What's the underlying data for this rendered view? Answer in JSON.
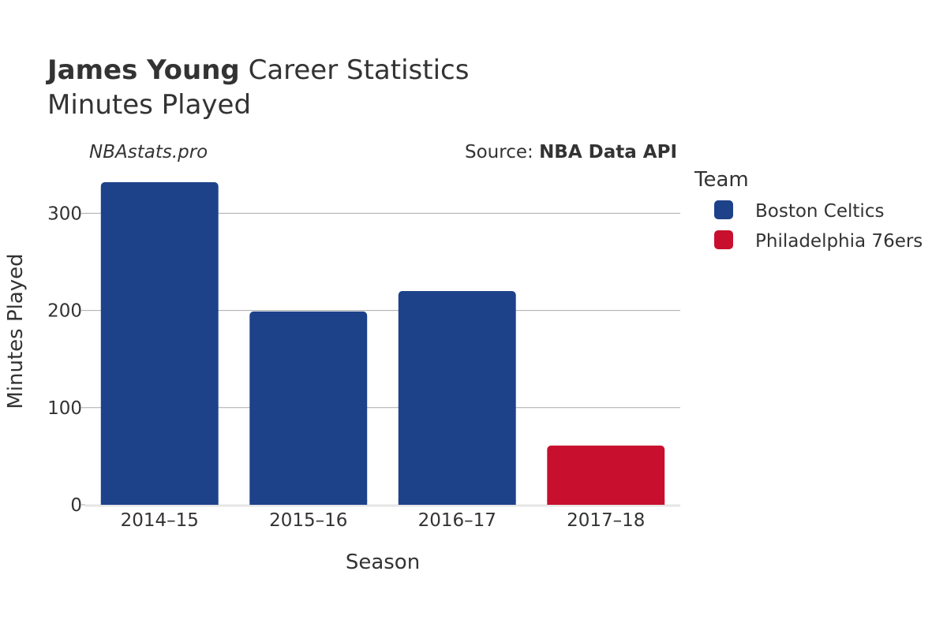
{
  "header": {
    "player": "James Young",
    "title_rest": " Career Statistics",
    "subtitle": "Minutes Played"
  },
  "credits": {
    "site": "NBAstats.pro",
    "source_prefix": "Source: ",
    "source_name": "NBA Data API"
  },
  "legend": {
    "title": "Team",
    "placement": "right"
  },
  "colors": {
    "Boston Celtics": "#1d428a",
    "Philadelphia 76ers": "#c8102e",
    "grid": "#aaaaaa",
    "baseline": "#e6e6e6"
  },
  "chart_data": {
    "type": "bar",
    "categories": [
      "2014–15",
      "2015–16",
      "2016–17",
      "2017–18"
    ],
    "series": [
      {
        "name": "Boston Celtics",
        "values": [
          332,
          199,
          220,
          null
        ]
      },
      {
        "name": "Philadelphia 76ers",
        "values": [
          null,
          null,
          null,
          61
        ]
      }
    ],
    "xlabel": "Season",
    "ylabel": "Minutes Played",
    "ylim": [
      0,
      345
    ],
    "yticks": [
      0,
      100,
      200,
      300
    ],
    "grid": true
  }
}
